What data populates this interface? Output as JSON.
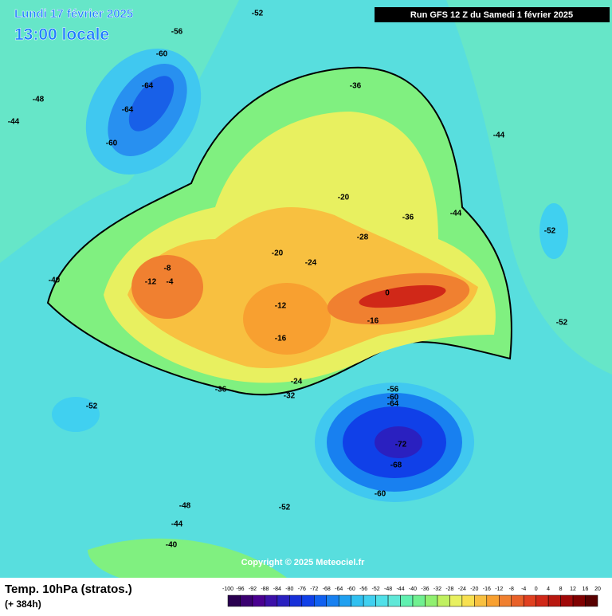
{
  "header": {
    "date": "Lundi 17 février 2025",
    "time": "13:00 locale",
    "run": "Run GFS 12 Z du Samedi 1 février 2025"
  },
  "footer": {
    "parameter": "Temp. 10hPa (stratos.)",
    "lead": "(+ 384h)",
    "copyright": "Copyright © 2025 Meteociel.fr"
  },
  "colorbar": {
    "ticks": [
      -100,
      -96,
      -92,
      -88,
      -84,
      -80,
      -76,
      -72,
      -68,
      -64,
      -60,
      -56,
      -52,
      -48,
      -44,
      -40,
      -36,
      -32,
      -28,
      -24,
      -20,
      -16,
      -12,
      -8,
      -4,
      0,
      4,
      8,
      12,
      16,
      20
    ],
    "colors": [
      "#2a0050",
      "#3a0070",
      "#4a0090",
      "#3c10a8",
      "#2a20c0",
      "#1830d8",
      "#1040e8",
      "#1060f0",
      "#1880f0",
      "#20a0f0",
      "#30c0f0",
      "#40d0f0",
      "#50e0e8",
      "#60e8d8",
      "#60f0b0",
      "#70f090",
      "#90f070",
      "#c0f060",
      "#e8f060",
      "#f8e050",
      "#f8c040",
      "#f8a030",
      "#f08030",
      "#e86028",
      "#e04020",
      "#d02818",
      "#b81810",
      "#a00808",
      "#800000",
      "#580000"
    ]
  },
  "contour_labels": [
    -52,
    -56,
    -60,
    -64,
    -64,
    -60,
    -36,
    -44,
    -36,
    -20,
    -20,
    -28,
    -8,
    -4,
    -12,
    -24,
    -12,
    -16,
    0,
    -16,
    -24,
    -32,
    -36,
    -52,
    -56,
    -60,
    -64,
    -72,
    -68,
    -60,
    -52,
    -48,
    -44,
    -40,
    -48,
    -44,
    -40,
    -52,
    -52,
    -44
  ]
}
